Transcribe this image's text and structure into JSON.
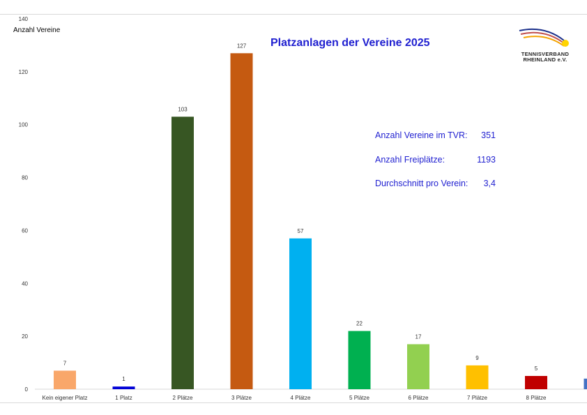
{
  "chart_data": {
    "type": "bar",
    "title": "Platzanlagen der Vereine 2025",
    "ylabel": "Anzahl Vereine",
    "xlabel": "",
    "ylim": [
      0,
      140
    ],
    "yticks": [
      0,
      20,
      40,
      60,
      80,
      100,
      120,
      140
    ],
    "grid": false,
    "categories": [
      "Kein eigener Platz",
      "1 Platz",
      "2 Plätze",
      "3 Plätze",
      "4 Plätze",
      "5 Plätze",
      "6 Plätze",
      "7 Plätze",
      "8 Plätze",
      ">"
    ],
    "values": [
      7,
      1,
      103,
      127,
      57,
      22,
      17,
      9,
      5,
      4
    ],
    "data_labels": [
      "7",
      "1",
      "103",
      "127",
      "57",
      "22",
      "17",
      "9",
      "5",
      ""
    ],
    "colors": [
      "#f9a76a",
      "#0000d6",
      "#375623",
      "#c55a11",
      "#00b0f0",
      "#00b050",
      "#92d050",
      "#ffc000",
      "#c00000",
      "#4472c4"
    ]
  },
  "stats": [
    {
      "label": "Anzahl Vereine im TVR:",
      "value": "351"
    },
    {
      "label": "Anzahl Freiplätze:",
      "value": "1193"
    },
    {
      "label": "Durchschnitt pro Verein:",
      "value": "3,4"
    }
  ],
  "logo": {
    "line1": "TENNISVERBAND",
    "line2": "RHEINLAND e.V."
  }
}
